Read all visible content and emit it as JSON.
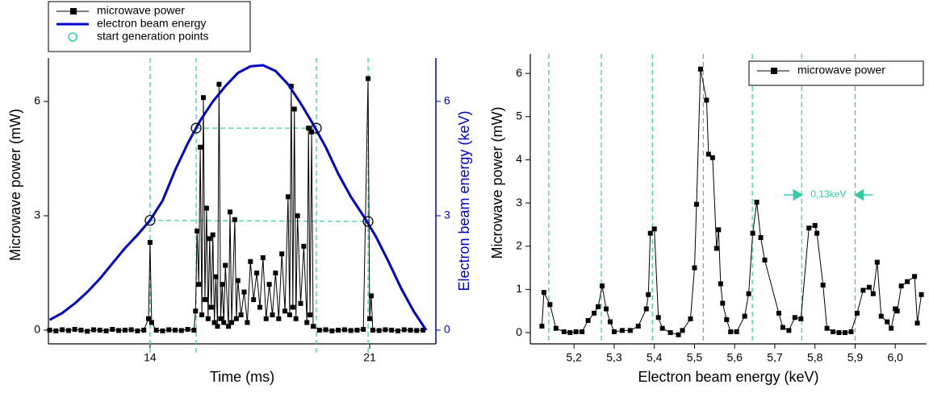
{
  "chart_data": [
    {
      "type": "line",
      "x_label": "Time (ms)",
      "y_label": "Microwave power (mW)",
      "y2_label": "Electron beam energy (keV)",
      "xlim": [
        10.76,
        23.11
      ],
      "xticks": [
        14,
        21
      ],
      "ylim": [
        -0.36,
        7.14
      ],
      "yticks": [
        0,
        3,
        6
      ],
      "y2lim": [
        -0.36,
        7.14
      ],
      "y2ticks": [
        0,
        3,
        6
      ],
      "y2_color": "#0000cc",
      "legend": "upper left",
      "reference_line_color": "#33ccaa",
      "series": [
        {
          "name": "microwave power",
          "color": "#000000",
          "marker": "square",
          "line": true,
          "x": [
            10.8,
            11.0,
            11.2,
            11.4,
            11.6,
            11.8,
            12.0,
            12.2,
            12.4,
            12.6,
            12.8,
            13.0,
            13.2,
            13.4,
            13.6,
            13.8,
            13.95,
            14.0,
            14.05,
            14.2,
            14.4,
            14.6,
            14.8,
            15.0,
            15.2,
            15.4,
            15.45,
            15.5,
            15.55,
            15.6,
            15.65,
            15.7,
            15.75,
            15.8,
            15.85,
            15.9,
            15.95,
            16.0,
            16.05,
            16.1,
            16.15,
            16.2,
            16.25,
            16.3,
            16.35,
            16.4,
            16.5,
            16.55,
            16.6,
            16.7,
            16.75,
            16.8,
            16.9,
            17.0,
            17.1,
            17.2,
            17.3,
            17.4,
            17.5,
            17.6,
            17.7,
            17.8,
            17.9,
            18.0,
            18.1,
            18.2,
            18.3,
            18.4,
            18.45,
            18.5,
            18.55,
            18.6,
            18.65,
            18.7,
            18.8,
            18.9,
            19.0,
            19.05,
            19.1,
            19.15,
            19.2,
            19.4,
            19.6,
            19.8,
            20.0,
            20.2,
            20.4,
            20.6,
            20.8,
            20.95,
            21.0,
            21.05,
            21.1,
            21.3,
            21.5,
            21.7,
            21.9,
            22.1,
            22.3,
            22.5,
            22.7
          ],
          "values": [
            0,
            -0.02,
            0.01,
            -0.01,
            0.02,
            0,
            -0.03,
            0.01,
            0,
            -0.02,
            0.02,
            -0.01,
            0,
            0.01,
            -0.02,
            0,
            0.3,
            2.3,
            0.2,
            0,
            -0.02,
            0.01,
            0,
            -0.01,
            0.02,
            0,
            0.5,
            2.6,
            1.2,
            4.8,
            0.4,
            6.1,
            0.8,
            3.2,
            0.3,
            2.4,
            0.6,
            2.5,
            0.2,
            1.4,
            0.1,
            6.45,
            0.3,
            1.2,
            0.2,
            1.7,
            0.1,
            3.1,
            0.2,
            2.9,
            0.3,
            1.3,
            0.4,
            1.0,
            0.2,
            1.8,
            0.8,
            1.5,
            0.6,
            1.9,
            0.3,
            1.2,
            0.4,
            1.5,
            0.3,
            2.0,
            0.5,
            3.5,
            0.4,
            6.4,
            0.6,
            5.8,
            0.3,
            3.0,
            0.7,
            2.2,
            0.2,
            5.3,
            0.4,
            5.2,
            0.1,
            0,
            0.01,
            -0.02,
            0,
            0.01,
            -0.01,
            0,
            0.02,
            6.6,
            0.3,
            0.9,
            0,
            -0.01,
            0.01,
            0,
            -0.02,
            0.01,
            0,
            -0.01,
            0
          ]
        },
        {
          "name": "electron beam energy",
          "color": "#0000cc",
          "marker": "none",
          "line": true,
          "axis": "y2",
          "x": [
            10.8,
            11.2,
            11.6,
            12.0,
            12.4,
            12.8,
            13.2,
            13.6,
            14.0,
            14.4,
            14.8,
            15.2,
            15.6,
            16.0,
            16.4,
            16.8,
            17.2,
            17.6,
            18.0,
            18.4,
            18.8,
            19.2,
            19.6,
            20.0,
            20.4,
            20.8,
            21.2,
            21.6,
            22.0,
            22.4,
            22.8
          ],
          "values": [
            0.27,
            0.45,
            0.7,
            1.0,
            1.35,
            1.75,
            2.15,
            2.5,
            2.88,
            3.4,
            4.2,
            4.9,
            5.5,
            6.0,
            6.4,
            6.75,
            6.92,
            6.95,
            6.8,
            6.45,
            5.95,
            5.4,
            4.8,
            4.1,
            3.5,
            3.0,
            2.45,
            1.8,
            1.1,
            0.5,
            0.0
          ]
        },
        {
          "name": "start generation points",
          "color": "#000000",
          "marker": "circle",
          "line": false,
          "axis": "y2",
          "x": [
            14.0,
            15.47,
            19.3,
            20.95
          ],
          "values": [
            2.88,
            5.3,
            5.3,
            2.85
          ]
        }
      ]
    },
    {
      "type": "line",
      "x_label": "Electron beam energy (keV)",
      "y_label": "Microwave power (mW)",
      "xlim": [
        5.091,
        6.078
      ],
      "xticks": [
        {
          "value": 5.2,
          "label": "5,2"
        },
        {
          "value": 5.3,
          "label": "5,3"
        },
        {
          "value": 5.4,
          "label": "5,4"
        },
        {
          "value": 5.5,
          "label": "5,5"
        },
        {
          "value": 5.6,
          "label": "5,6"
        },
        {
          "value": 5.7,
          "label": "5,7"
        },
        {
          "value": 5.8,
          "label": "5,8"
        },
        {
          "value": 5.9,
          "label": "5,9"
        },
        {
          "value": 6.0,
          "label": "6,0"
        }
      ],
      "ylim": [
        -0.26,
        6.45
      ],
      "yticks": [
        0,
        1,
        2,
        3,
        4,
        5,
        6
      ],
      "legend": "upper right",
      "reference_line_color": "#33ccaa",
      "vlines": [
        5.137,
        5.268,
        5.395,
        5.522,
        5.644,
        5.767,
        5.9
      ],
      "annotation": "0,13keV",
      "series": [
        {
          "name": "microwave power",
          "color": "#000000",
          "marker": "square",
          "line": true,
          "x": [
            5.12,
            5.125,
            5.14,
            5.155,
            5.175,
            5.19,
            5.205,
            5.22,
            5.235,
            5.25,
            5.26,
            5.27,
            5.28,
            5.29,
            5.3,
            5.32,
            5.34,
            5.36,
            5.38,
            5.385,
            5.39,
            5.4,
            5.41,
            5.42,
            5.44,
            5.46,
            5.47,
            5.49,
            5.5,
            5.505,
            5.515,
            5.53,
            5.535,
            5.545,
            5.555,
            5.56,
            5.565,
            5.57,
            5.58,
            5.59,
            5.605,
            5.625,
            5.635,
            5.645,
            5.655,
            5.665,
            5.675,
            5.71,
            5.72,
            5.735,
            5.75,
            5.765,
            5.785,
            5.8,
            5.805,
            5.82,
            5.83,
            5.845,
            5.86,
            5.875,
            5.89,
            5.905,
            5.92,
            5.935,
            5.945,
            5.955,
            5.965,
            5.98,
            5.99,
            6.0,
            6.005,
            6.015,
            6.03,
            6.048,
            6.055,
            6.065
          ],
          "values": [
            0.15,
            0.93,
            0.65,
            0.1,
            0.02,
            0,
            0.02,
            0.02,
            0.28,
            0.45,
            0.6,
            1.08,
            0.55,
            0.25,
            0.02,
            0.05,
            0.05,
            0.15,
            0.55,
            0.88,
            2.3,
            2.4,
            0.35,
            0.1,
            0,
            -0.05,
            0.05,
            0.32,
            1.5,
            2.97,
            6.1,
            5.38,
            4.13,
            4.05,
            1.95,
            2.38,
            1.13,
            0.68,
            0.3,
            0.02,
            0.02,
            0.38,
            0.9,
            2.3,
            3.02,
            2.2,
            1.68,
            0.45,
            0.12,
            0.05,
            0.35,
            0.32,
            2.42,
            2.48,
            2.3,
            1.1,
            0.1,
            0.02,
            0,
            0,
            0.02,
            0.45,
            0.98,
            1.05,
            0.9,
            1.63,
            0.38,
            0.25,
            0.1,
            0.55,
            0.5,
            1.08,
            1.18,
            1.3,
            0.22,
            0.88
          ]
        }
      ]
    }
  ]
}
